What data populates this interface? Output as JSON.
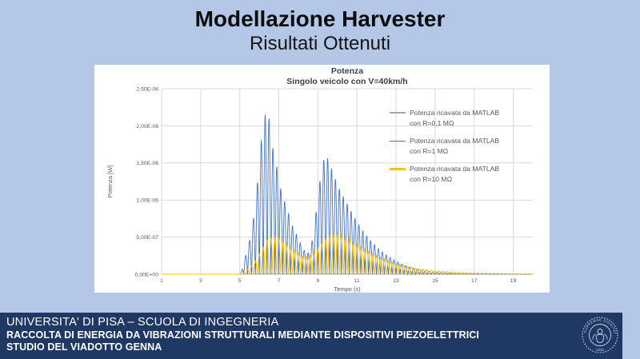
{
  "slide": {
    "title": "Modellazione Harvester",
    "subtitle": "Risultati Ottenuti",
    "background_color": "#b4c7e7"
  },
  "chart": {
    "title": "Potenza",
    "subtitle": "Singolo veicolo con V=40km/h",
    "x_axis_title": "Tempo (s)",
    "y_axis_title": "Potenza [W]"
  },
  "chart_data": {
    "type": "line",
    "title": "Potenza",
    "subtitle": "Singolo veicolo con V=40km/h",
    "xlabel": "Tempo (s)",
    "ylabel": "Potenza [W]",
    "xlim": [
      1,
      20
    ],
    "ylim": [
      0,
      2.5e-06
    ],
    "x_ticks": [
      1,
      3,
      5,
      7,
      9,
      11,
      13,
      15,
      17,
      19
    ],
    "y_tick_labels": [
      "0,00E+00",
      "5,00E-07",
      "1,00E-06",
      "1,50E-06",
      "2,00E-06",
      "2,50E-06"
    ],
    "grid": true,
    "gridline_color": "#d9d9d9",
    "axis_line_color": "#bfbfbf",
    "legend_position": "right-inside",
    "oscillation": {
      "period_s": 0.2,
      "sharpness": 1.3
    },
    "series": [
      {
        "name": "Potenza ricavata da MATLAB con R=0,1 MΩ",
        "color": "#a6a6a6",
        "phase_offset_s": 0.05,
        "envelope": [
          [
            1,
            0
          ],
          [
            5.2,
            0
          ],
          [
            5.8,
            8e-09
          ],
          [
            6.3,
            1.2e-08
          ],
          [
            7.5,
            8e-09
          ],
          [
            8.5,
            5e-09
          ],
          [
            9.3,
            1e-08
          ],
          [
            10.5,
            7e-09
          ],
          [
            12,
            4e-09
          ],
          [
            14,
            2e-09
          ],
          [
            20,
            0
          ]
        ]
      },
      {
        "name": "Potenza ricavata da MATLAB con R=1 MΩ",
        "color": "#4472c4",
        "phase_offset_s": 0,
        "envelope": [
          [
            1,
            0
          ],
          [
            5.05,
            0
          ],
          [
            5.2,
            1.5e-07
          ],
          [
            5.5,
            4.5e-07
          ],
          [
            5.8,
            9e-07
          ],
          [
            6.0,
            1.55e-06
          ],
          [
            6.2,
            2.05e-06
          ],
          [
            6.35,
            2.2e-06
          ],
          [
            6.5,
            2.1e-06
          ],
          [
            6.7,
            1.7e-06
          ],
          [
            6.9,
            1.45e-06
          ],
          [
            7.1,
            1.15e-06
          ],
          [
            7.4,
            9e-07
          ],
          [
            7.7,
            6.5e-07
          ],
          [
            8.0,
            4.8e-07
          ],
          [
            8.3,
            3.2e-07
          ],
          [
            8.55,
            2.8e-07
          ],
          [
            8.75,
            5e-07
          ],
          [
            9.0,
            1.05e-06
          ],
          [
            9.2,
            1.45e-06
          ],
          [
            9.4,
            1.63e-06
          ],
          [
            9.6,
            1.5e-06
          ],
          [
            9.8,
            1.35e-06
          ],
          [
            10.1,
            1.15e-06
          ],
          [
            10.4,
            1e-06
          ],
          [
            10.8,
            8e-07
          ],
          [
            11.2,
            6.2e-07
          ],
          [
            11.6,
            4.8e-07
          ],
          [
            12.0,
            3.7e-07
          ],
          [
            12.4,
            2.8e-07
          ],
          [
            12.8,
            2.1e-07
          ],
          [
            13.2,
            1.5e-07
          ],
          [
            13.6,
            1.05e-07
          ],
          [
            14.0,
            7e-08
          ],
          [
            14.5,
            4.5e-08
          ],
          [
            15.0,
            3e-08
          ],
          [
            15.5,
            2e-08
          ],
          [
            16.0,
            1.3e-08
          ],
          [
            17.0,
            7e-09
          ],
          [
            18.0,
            4e-09
          ],
          [
            20,
            2e-09
          ]
        ]
      },
      {
        "name": "Potenza ricavata da MATLAB con R=10 MΩ",
        "color": "#ffc000",
        "phase_offset_s": 0.1,
        "envelope": [
          [
            1,
            0
          ],
          [
            5.15,
            0
          ],
          [
            5.4,
            6e-08
          ],
          [
            5.8,
            1.8e-07
          ],
          [
            6.1,
            3.2e-07
          ],
          [
            6.4,
            4.6e-07
          ],
          [
            6.7,
            5.2e-07
          ],
          [
            7.0,
            5e-07
          ],
          [
            7.3,
            4.4e-07
          ],
          [
            7.6,
            3.6e-07
          ],
          [
            7.9,
            3e-07
          ],
          [
            8.2,
            2.5e-07
          ],
          [
            8.5,
            2.4e-07
          ],
          [
            8.8,
            3e-07
          ],
          [
            9.1,
            3.9e-07
          ],
          [
            9.4,
            4.8e-07
          ],
          [
            9.7,
            5.4e-07
          ],
          [
            10.0,
            5.5e-07
          ],
          [
            10.3,
            5.2e-07
          ],
          [
            10.6,
            4.7e-07
          ],
          [
            11.0,
            4e-07
          ],
          [
            11.4,
            3.4e-07
          ],
          [
            11.8,
            2.8e-07
          ],
          [
            12.2,
            2.3e-07
          ],
          [
            12.6,
            1.85e-07
          ],
          [
            13.0,
            1.5e-07
          ],
          [
            13.5,
            1.1e-07
          ],
          [
            14.0,
            8.5e-08
          ],
          [
            14.5,
            6.5e-08
          ],
          [
            15.0,
            5e-08
          ],
          [
            15.5,
            3.8e-08
          ],
          [
            16.0,
            3e-08
          ],
          [
            16.5,
            2.3e-08
          ],
          [
            17.0,
            1.8e-08
          ],
          [
            18.0,
            1.1e-08
          ],
          [
            19.0,
            7e-09
          ],
          [
            20,
            5e-09
          ]
        ]
      }
    ]
  },
  "legend": {
    "entries": [
      {
        "line1": "Potenza ricavata da MATLAB",
        "line2": "con R=0,1 MΩ",
        "color": "#a6a6a6"
      },
      {
        "line1": "Potenza ricavata da MATLAB",
        "line2": "con R=1 MΩ",
        "color": "#4472c4"
      },
      {
        "line1": "Potenza ricavata da MATLAB",
        "line2": "con R=10 MΩ",
        "color": "#ffc000"
      }
    ]
  },
  "footer": {
    "line1": "UNIVERSITA' DI PISA – SCUOLA DI INGEGNERIA",
    "line2": "RACCOLTA DI ENERGIA DA VIBRAZIONI STRUTTURALI MEDIANTE DISPOSITIVI PIEZOELETTRICI",
    "line3": "STUDIO DEL VIADOTTO GENNA",
    "background_color": "#1f3864",
    "seal": {
      "text_top": "IN SUPREMAE DIGNITATIS",
      "text_bottom": "· 1343 ·"
    }
  }
}
